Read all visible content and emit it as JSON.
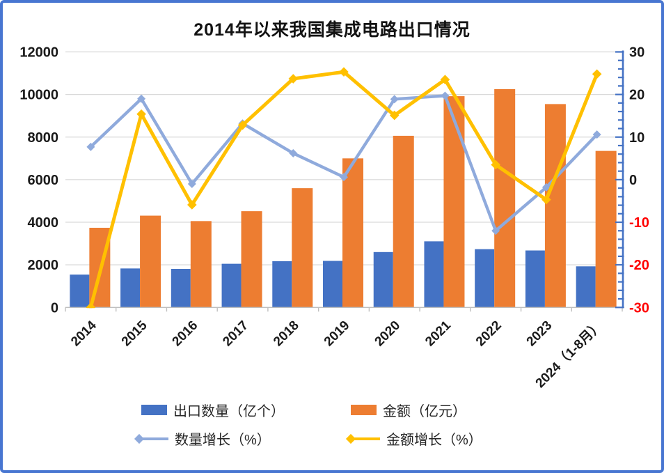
{
  "frame": {
    "border_color": "#4876D1",
    "background": "#FFFFFF"
  },
  "chart_data": {
    "type": "combo-bar-line",
    "title": "2014年以来我国集成电路出口情况",
    "categories": [
      "2014",
      "2015",
      "2016",
      "2017",
      "2018",
      "2019",
      "2020",
      "2021",
      "2022",
      "2023",
      "2024（1-8月）"
    ],
    "series": [
      {
        "name": "出口数量（亿个）",
        "type": "bar",
        "axis": "left",
        "color": "#4472C4",
        "values": [
          1540,
          1830,
          1810,
          2050,
          2170,
          2185,
          2600,
          3105,
          2735,
          2675,
          1930
        ]
      },
      {
        "name": "金额（亿元）",
        "type": "bar",
        "axis": "left",
        "color": "#ED7D31",
        "values": [
          3740,
          4310,
          4055,
          4520,
          5600,
          7000,
          8060,
          9920,
          10250,
          9550,
          7350
        ]
      },
      {
        "name": "数量增长（%）",
        "type": "line",
        "axis": "right",
        "color": "#8FAADC",
        "marker": "diamond",
        "values": [
          7.7,
          19.0,
          -1.0,
          13.2,
          6.2,
          0.6,
          18.9,
          19.7,
          -12.0,
          -1.8,
          10.6
        ]
      },
      {
        "name": "金额增长（%）",
        "type": "line",
        "axis": "right",
        "color": "#FFC000",
        "marker": "diamond",
        "values": [
          -30.0,
          15.4,
          -5.9,
          12.8,
          23.7,
          25.3,
          15.1,
          23.5,
          3.5,
          -4.7,
          24.8
        ]
      }
    ],
    "left_axis": {
      "min": 0,
      "max": 12000,
      "step": 2000,
      "tick_labels": [
        "0",
        "2000",
        "4000",
        "6000",
        "8000",
        "10000",
        "12000"
      ],
      "label_color": "#1A1A1A"
    },
    "right_axis": {
      "min": -30,
      "max": 30,
      "step": 10,
      "minor_step": 2,
      "tick_labels": [
        "30",
        "20",
        "10",
        "0",
        "-10",
        "-20",
        "-30"
      ],
      "label_color": "#1A1A1A",
      "negative_label_color": "#FF0000",
      "axis_color": "#4472C4"
    },
    "x_axis": {
      "label_rotation_deg": -45,
      "axis_color": "#BFBFBF",
      "label_color": "#1A1A1A"
    },
    "gridline_color": "#D9D9D9",
    "grid": "horizontal-only",
    "legend_position": "bottom-two-rows"
  }
}
